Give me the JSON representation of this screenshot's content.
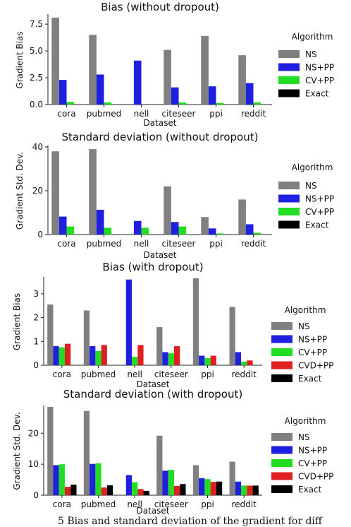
{
  "colors": {
    "NS": "#808080",
    "NS+PP": "#1f1fe0",
    "CV+PP": "#22dd22",
    "CVD+PP": "#e02020",
    "Exact": "#000000"
  },
  "caption_fragment": "5 Bias and standard deviation of the gradient for diff",
  "chart_data": [
    {
      "type": "bar",
      "title": "Bias (without dropout)",
      "xlabel": "Dataset",
      "ylabel": "Gradient Bias",
      "ylim": [
        0,
        8.3
      ],
      "yticks": [
        0.0,
        2.5,
        5.0,
        7.5
      ],
      "ytick_labels": [
        "0.0",
        "2.5",
        "5.0",
        "7.5"
      ],
      "legend_title": "Algorithm",
      "legend_position": "right",
      "categories": [
        "cora",
        "pubmed",
        "nell",
        "citeseer",
        "ppi",
        "reddit"
      ],
      "series": [
        {
          "name": "NS",
          "values": [
            8.1,
            6.5,
            0,
            5.1,
            6.4,
            4.6
          ]
        },
        {
          "name": "NS+PP",
          "values": [
            2.3,
            2.8,
            4.1,
            1.6,
            1.7,
            2.0
          ]
        },
        {
          "name": "CV+PP",
          "values": [
            0.25,
            0.2,
            0,
            0.2,
            0.15,
            0.2
          ]
        },
        {
          "name": "Exact",
          "values": [
            0,
            0,
            0,
            0,
            0,
            0
          ]
        }
      ]
    },
    {
      "type": "bar",
      "title": "Standard deviation (without dropout)",
      "xlabel": "Dataset",
      "ylabel": "Gradient Std. Dev.",
      "ylim": [
        0,
        40
      ],
      "yticks": [
        0,
        20,
        40
      ],
      "ytick_labels": [
        "0",
        "20",
        "40"
      ],
      "legend_title": "Algorithm",
      "legend_position": "right",
      "categories": [
        "cora",
        "pubmed",
        "nell",
        "citeseer",
        "ppi",
        "reddit"
      ],
      "series": [
        {
          "name": "NS",
          "values": [
            38,
            39,
            0,
            22,
            8,
            16
          ]
        },
        {
          "name": "NS+PP",
          "values": [
            8.2,
            11.3,
            6.2,
            5.7,
            2.8,
            4.7
          ]
        },
        {
          "name": "CV+PP",
          "values": [
            3.7,
            3.1,
            3.1,
            3.7,
            0.5,
            0.8
          ]
        },
        {
          "name": "Exact",
          "values": [
            0,
            0,
            0,
            0,
            0,
            0
          ]
        }
      ]
    },
    {
      "type": "bar",
      "title": "Bias (with dropout)",
      "xlabel": "Dataset",
      "ylabel": "Gradient Bias",
      "ylim": [
        0,
        3.65
      ],
      "yticks": [
        0,
        1,
        2,
        3
      ],
      "ytick_labels": [
        "0",
        "1",
        "2",
        "3"
      ],
      "legend_title": "Algorithm",
      "legend_position": "right",
      "categories": [
        "cora",
        "pubmed",
        "nell",
        "citeseer",
        "ppi",
        "reddit"
      ],
      "series": [
        {
          "name": "NS",
          "values": [
            2.55,
            2.3,
            0,
            1.6,
            3.65,
            2.45
          ]
        },
        {
          "name": "NS+PP",
          "values": [
            0.8,
            0.8,
            3.6,
            0.55,
            0.4,
            0.55
          ]
        },
        {
          "name": "CV+PP",
          "values": [
            0.75,
            0.6,
            0.35,
            0.5,
            0.3,
            0.15
          ]
        },
        {
          "name": "CVD+PP",
          "values": [
            0.9,
            0.85,
            0.85,
            0.8,
            0.4,
            0.2
          ]
        },
        {
          "name": "Exact",
          "values": [
            0,
            0,
            0,
            0,
            0,
            0
          ]
        }
      ]
    },
    {
      "type": "bar",
      "title": "Standard deviation (with dropout)",
      "xlabel": "Dataset",
      "ylabel": "Gradient Std. Dev.",
      "ylim": [
        0,
        28.5
      ],
      "yticks": [
        0,
        10,
        20
      ],
      "ytick_labels": [
        "0",
        "10",
        "20"
      ],
      "legend_title": "Algorithm",
      "legend_position": "right",
      "categories": [
        "cora",
        "pubmed",
        "nell",
        "citeseer",
        "ppi",
        "reddit"
      ],
      "series": [
        {
          "name": "NS",
          "values": [
            28.5,
            27.2,
            0,
            19.2,
            9.7,
            10.8
          ]
        },
        {
          "name": "NS+PP",
          "values": [
            9.7,
            10.1,
            6.5,
            7.9,
            5.5,
            4.4
          ]
        },
        {
          "name": "CV+PP",
          "values": [
            10.0,
            10.3,
            4.2,
            8.2,
            5.2,
            3.1
          ]
        },
        {
          "name": "CVD+PP",
          "values": [
            2.7,
            2.5,
            2.0,
            3.0,
            4.3,
            3.1
          ]
        },
        {
          "name": "Exact",
          "values": [
            3.4,
            3.2,
            1.4,
            3.6,
            4.4,
            3.1
          ]
        }
      ]
    }
  ]
}
